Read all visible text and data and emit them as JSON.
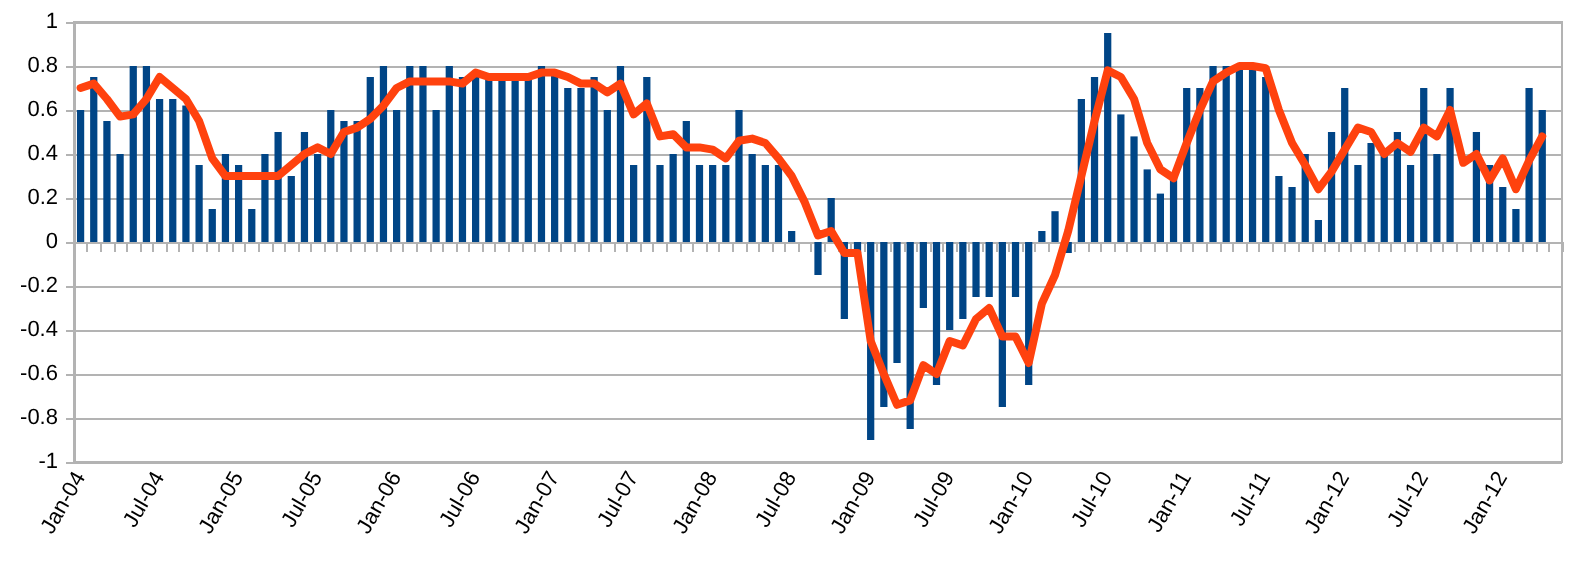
{
  "chart_data": {
    "type": "bar",
    "categories": [
      "Jan-04",
      null,
      null,
      null,
      null,
      null,
      "Jul-04",
      null,
      null,
      null,
      null,
      null,
      "Jan-05",
      null,
      null,
      null,
      null,
      null,
      "Jul-05",
      null,
      null,
      null,
      null,
      null,
      "Jan-06",
      null,
      null,
      null,
      null,
      null,
      "Jul-06",
      null,
      null,
      null,
      null,
      null,
      "Jan-07",
      null,
      null,
      null,
      null,
      null,
      "Jul-07",
      null,
      null,
      null,
      null,
      null,
      "Jan-08",
      null,
      null,
      null,
      null,
      null,
      "Jul-08",
      null,
      null,
      null,
      null,
      null,
      "Jan-09",
      null,
      null,
      null,
      null,
      null,
      "Jul-09",
      null,
      null,
      null,
      null,
      null,
      "Jan-10",
      null,
      null,
      null,
      null,
      null,
      "Jul-10",
      null,
      null,
      null,
      null,
      null,
      "Jan-11",
      null,
      null,
      null,
      null,
      null,
      "Jul-11",
      null,
      null,
      null,
      null,
      null,
      "Jan-12",
      null,
      null,
      null,
      null,
      null,
      "Jul-12",
      null,
      null,
      null,
      null,
      null,
      "Jan-12",
      null,
      null,
      null,
      null
    ],
    "series": [
      {
        "color": "#004586",
        "values": [
          0.6,
          0.75,
          0.55,
          0.4,
          0.8,
          0.8,
          0.65,
          0.65,
          0.62,
          0.35,
          0.15,
          0.4,
          0.35,
          0.15,
          0.4,
          0.5,
          0.3,
          0.5,
          0.4,
          0.6,
          0.55,
          0.55,
          0.75,
          0.8,
          0.6,
          0.8,
          0.8,
          0.6,
          0.8,
          0.75,
          0.75,
          0.75,
          0.75,
          0.75,
          0.75,
          0.8,
          0.78,
          0.7,
          0.7,
          0.75,
          0.6,
          0.8,
          0.35,
          0.75,
          0.35,
          0.4,
          0.55,
          0.35,
          0.35,
          0.35,
          0.6,
          0.4,
          0.35,
          0.35,
          0.05,
          0,
          -0.15,
          0.2,
          -0.35,
          -0.05,
          -0.9,
          -0.75,
          -0.55,
          -0.85,
          -0.3,
          -0.65,
          -0.4,
          -0.35,
          -0.25,
          -0.25,
          -0.75,
          -0.25,
          -0.65,
          0.05,
          0.14,
          -0.05,
          0.65,
          0.75,
          0.95,
          0.58,
          0.48,
          0.33,
          0.22,
          0.3,
          0.7,
          0.7,
          0.8,
          0.8,
          0.8,
          0.8,
          0.75,
          0.3,
          0.25,
          0.4,
          0.1,
          0.5,
          0.7,
          0.35,
          0.45,
          0.4,
          0.5,
          0.35,
          0.7,
          0.4,
          0.7,
          null,
          0.5,
          0.35,
          0.25,
          0.15,
          0.7,
          0.6,
          null
        ]
      },
      {
        "type": "line",
        "color": "#ff420e",
        "values": [
          0.7,
          0.72,
          0.65,
          0.57,
          0.58,
          0.65,
          0.75,
          0.7,
          0.65,
          0.55,
          0.38,
          0.3,
          0.3,
          0.3,
          0.3,
          0.3,
          0.35,
          0.4,
          0.43,
          0.4,
          0.5,
          0.52,
          0.56,
          0.62,
          0.7,
          0.73,
          0.73,
          0.73,
          0.73,
          0.72,
          0.77,
          0.75,
          0.75,
          0.75,
          0.75,
          0.77,
          0.77,
          0.75,
          0.72,
          0.72,
          0.68,
          0.72,
          0.58,
          0.63,
          0.48,
          0.49,
          0.43,
          0.43,
          0.42,
          0.38,
          0.46,
          0.47,
          0.45,
          0.38,
          0.3,
          0.18,
          0.03,
          0.05,
          -0.05,
          -0.05,
          -0.45,
          -0.6,
          -0.74,
          -0.72,
          -0.56,
          -0.6,
          -0.45,
          -0.47,
          -0.35,
          -0.3,
          -0.43,
          -0.43,
          -0.55,
          -0.28,
          -0.15,
          0.05,
          0.3,
          0.55,
          0.78,
          0.75,
          0.65,
          0.45,
          0.33,
          0.29,
          0.45,
          0.6,
          0.73,
          0.77,
          0.8,
          0.8,
          0.79,
          0.6,
          0.45,
          0.35,
          0.24,
          0.32,
          0.42,
          0.52,
          0.5,
          0.4,
          0.45,
          0.41,
          0.52,
          0.48,
          0.6,
          0.36,
          0.4,
          0.28,
          0.38,
          0.24,
          0.37,
          0.48,
          null
        ]
      }
    ],
    "ylim": [
      -1,
      1
    ],
    "yticks": [
      -1,
      -0.8,
      -0.6,
      -0.4,
      -0.2,
      0,
      0.2,
      0.4,
      0.6,
      0.8,
      1
    ],
    "grid": "y",
    "marker": "none"
  }
}
